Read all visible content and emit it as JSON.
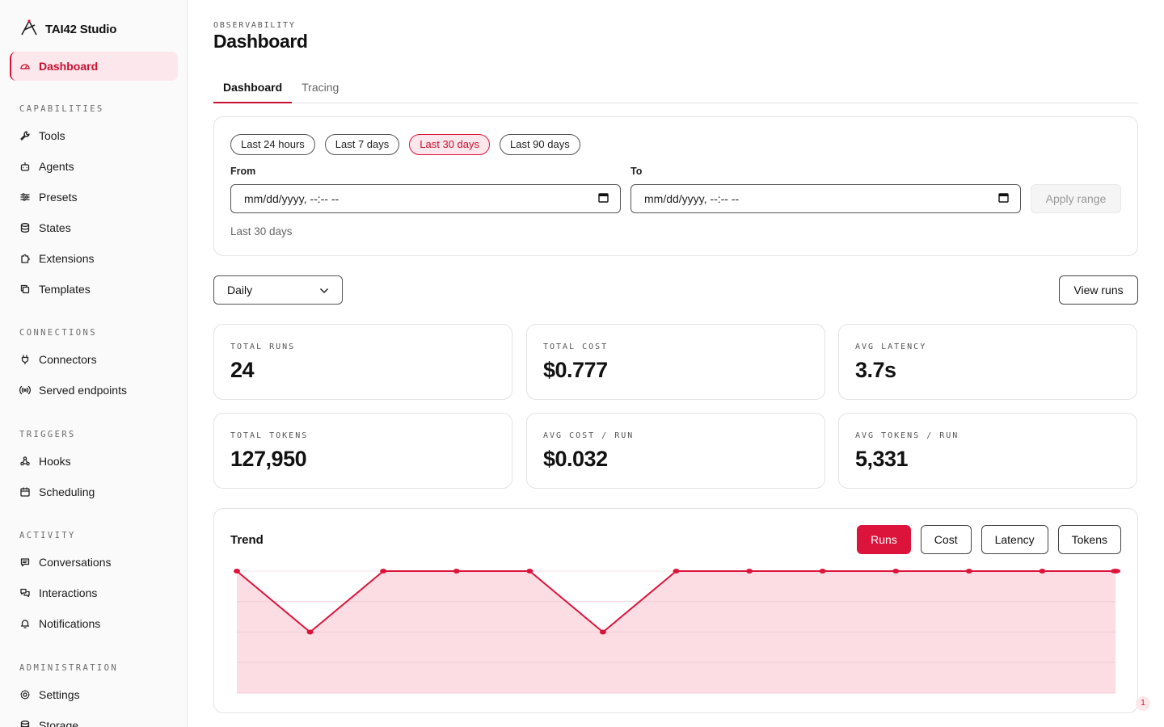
{
  "app": {
    "brand": "TAI42 Studio"
  },
  "sidebar": {
    "active": "Dashboard",
    "sections": [
      {
        "label": "CAPABILITIES",
        "items": [
          {
            "label": "Tools",
            "icon": "wrench-icon"
          },
          {
            "label": "Agents",
            "icon": "robot-icon"
          },
          {
            "label": "Presets",
            "icon": "sliders-icon"
          },
          {
            "label": "States",
            "icon": "database-icon"
          },
          {
            "label": "Extensions",
            "icon": "puzzle-icon"
          },
          {
            "label": "Templates",
            "icon": "copy-icon"
          }
        ]
      },
      {
        "label": "CONNECTIONS",
        "items": [
          {
            "label": "Connectors",
            "icon": "plug-icon"
          },
          {
            "label": "Served endpoints",
            "icon": "broadcast-icon"
          }
        ]
      },
      {
        "label": "TRIGGERS",
        "items": [
          {
            "label": "Hooks",
            "icon": "webhook-icon"
          },
          {
            "label": "Scheduling",
            "icon": "calendar-icon"
          }
        ]
      },
      {
        "label": "ACTIVITY",
        "items": [
          {
            "label": "Conversations",
            "icon": "message-icon"
          },
          {
            "label": "Interactions",
            "icon": "chat-bubbles-icon"
          },
          {
            "label": "Notifications",
            "icon": "bell-icon"
          }
        ]
      },
      {
        "label": "ADMINISTRATION",
        "items": [
          {
            "label": "Settings",
            "icon": "gear-icon"
          },
          {
            "label": "Storage",
            "icon": "database-icon"
          }
        ]
      }
    ]
  },
  "header": {
    "eyebrow": "OBSERVABILITY",
    "title": "Dashboard"
  },
  "tabs": [
    {
      "label": "Dashboard",
      "active": true
    },
    {
      "label": "Tracing",
      "active": false
    }
  ],
  "range": {
    "presets": [
      {
        "label": "Last 24 hours",
        "active": false
      },
      {
        "label": "Last 7 days",
        "active": false
      },
      {
        "label": "Last 30 days",
        "active": true
      },
      {
        "label": "Last 90 days",
        "active": false
      }
    ],
    "from_label": "From",
    "to_label": "To",
    "from_placeholder": "mm/dd/yyyy, --:-- --",
    "to_placeholder": "mm/dd/yyyy, --:-- --",
    "apply_label": "Apply range",
    "summary": "Last 30 days"
  },
  "granularity": {
    "selected": "Daily"
  },
  "view_runs_label": "View runs",
  "stats": [
    {
      "label": "Total runs",
      "value": "24"
    },
    {
      "label": "Total cost",
      "value": "$0.777"
    },
    {
      "label": "Avg latency",
      "value": "3.7s"
    },
    {
      "label": "Total tokens",
      "value": "127,950"
    },
    {
      "label": "Avg cost / run",
      "value": "$0.032"
    },
    {
      "label": "Avg tokens / run",
      "value": "5,331"
    }
  ],
  "trend": {
    "title": "Trend",
    "metrics": [
      {
        "label": "Runs",
        "active": true
      },
      {
        "label": "Cost",
        "active": false
      },
      {
        "label": "Latency",
        "active": false
      },
      {
        "label": "Tokens",
        "active": false
      }
    ]
  },
  "chart_data": {
    "type": "area",
    "series": [
      {
        "values": [
          2,
          1,
          2,
          2,
          2,
          1,
          2,
          2,
          2,
          2,
          2,
          2,
          2
        ]
      }
    ],
    "ylim": [
      0,
      2
    ],
    "grid": true,
    "color": "#dc143c",
    "fill": "#fbdde3"
  },
  "badge": {
    "count": "1"
  }
}
